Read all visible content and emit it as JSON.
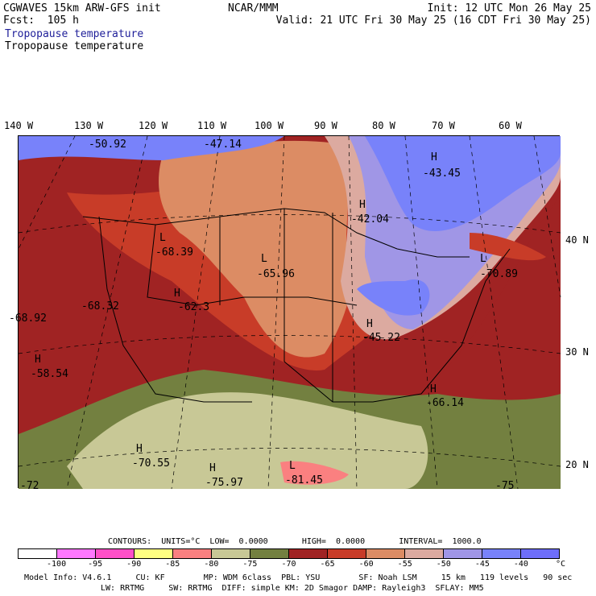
{
  "header": {
    "model": "CGWAVES 15km ARW-GFS init",
    "org": "NCAR/MMM",
    "init": "Init: 12 UTC Mon 26 May 25",
    "fcst": "Fcst:  105 h",
    "valid": "Valid: 21 UTC Fri 30 May 25 (16 CDT Fri 30 May 25)",
    "field_blue": "Tropopause temperature",
    "field_black": "Tropopause temperature"
  },
  "longitude_labels": [
    "140 W",
    "130 W",
    "120 W",
    "110 W",
    "100 W",
    "90 W",
    "80 W",
    "70 W",
    "60 W"
  ],
  "latitude_labels": [
    "40 N",
    "30 N",
    "20 N"
  ],
  "map_annotations": [
    {
      "marker": "",
      "value": "-50.92"
    },
    {
      "marker": "",
      "value": "-47.14"
    },
    {
      "marker": "H",
      "value": "-43.45"
    },
    {
      "marker": "H",
      "value": "-42.04"
    },
    {
      "marker": "L",
      "value": "-68.39"
    },
    {
      "marker": "L",
      "value": "-65.96"
    },
    {
      "marker": "L",
      "value": "-70.89"
    },
    {
      "marker": "",
      "value": "-68.32"
    },
    {
      "marker": "H",
      "value": "-62.3"
    },
    {
      "marker": "",
      "value": "-68.92"
    },
    {
      "marker": "H",
      "value": "-45.22"
    },
    {
      "marker": "H",
      "value": "-58.54"
    },
    {
      "marker": "H",
      "value": "-66.14"
    },
    {
      "marker": "H",
      "value": "-70.55"
    },
    {
      "marker": "H",
      "value": "-75.97"
    },
    {
      "marker": "L",
      "value": "-81.45"
    },
    {
      "marker": "",
      "value": "-72"
    },
    {
      "marker": "",
      "value": "-75"
    }
  ],
  "contours": {
    "text": "CONTOURS:  UNITS=°C  LOW=  0.0000       HIGH=  0.0000       INTERVAL=  1000.0",
    "units": "°C",
    "low": "0.0000",
    "high": "0.0000",
    "interval": "1000.0"
  },
  "colorbar": {
    "labels": [
      "-100",
      "-95",
      "-90",
      "-85",
      "-80",
      "-75",
      "-70",
      "-65",
      "-60",
      "-55",
      "-50",
      "-45",
      "-40"
    ],
    "unit_label": "°C",
    "colors": [
      "#ffffff",
      "#ff78ff",
      "#ff50c8",
      "#ffff82",
      "#fa8080",
      "#c8c896",
      "#738040",
      "#a02323",
      "#c83c28",
      "#dc8c64",
      "#dcaaa0",
      "#a096e6",
      "#7882fa",
      "#6e6efa"
    ]
  },
  "model_info": {
    "line1": "Model Info: V4.6.1     CU: KF        MP: WDM 6class  PBL: YSU        SF: Noah LSM     15 km   119 levels   90 sec",
    "line2": "LW: RRTMG     SW: RRTMG  DIFF: simple KM: 2D Smagor DAMP: Rayleigh3  SFLAY: MM5"
  }
}
